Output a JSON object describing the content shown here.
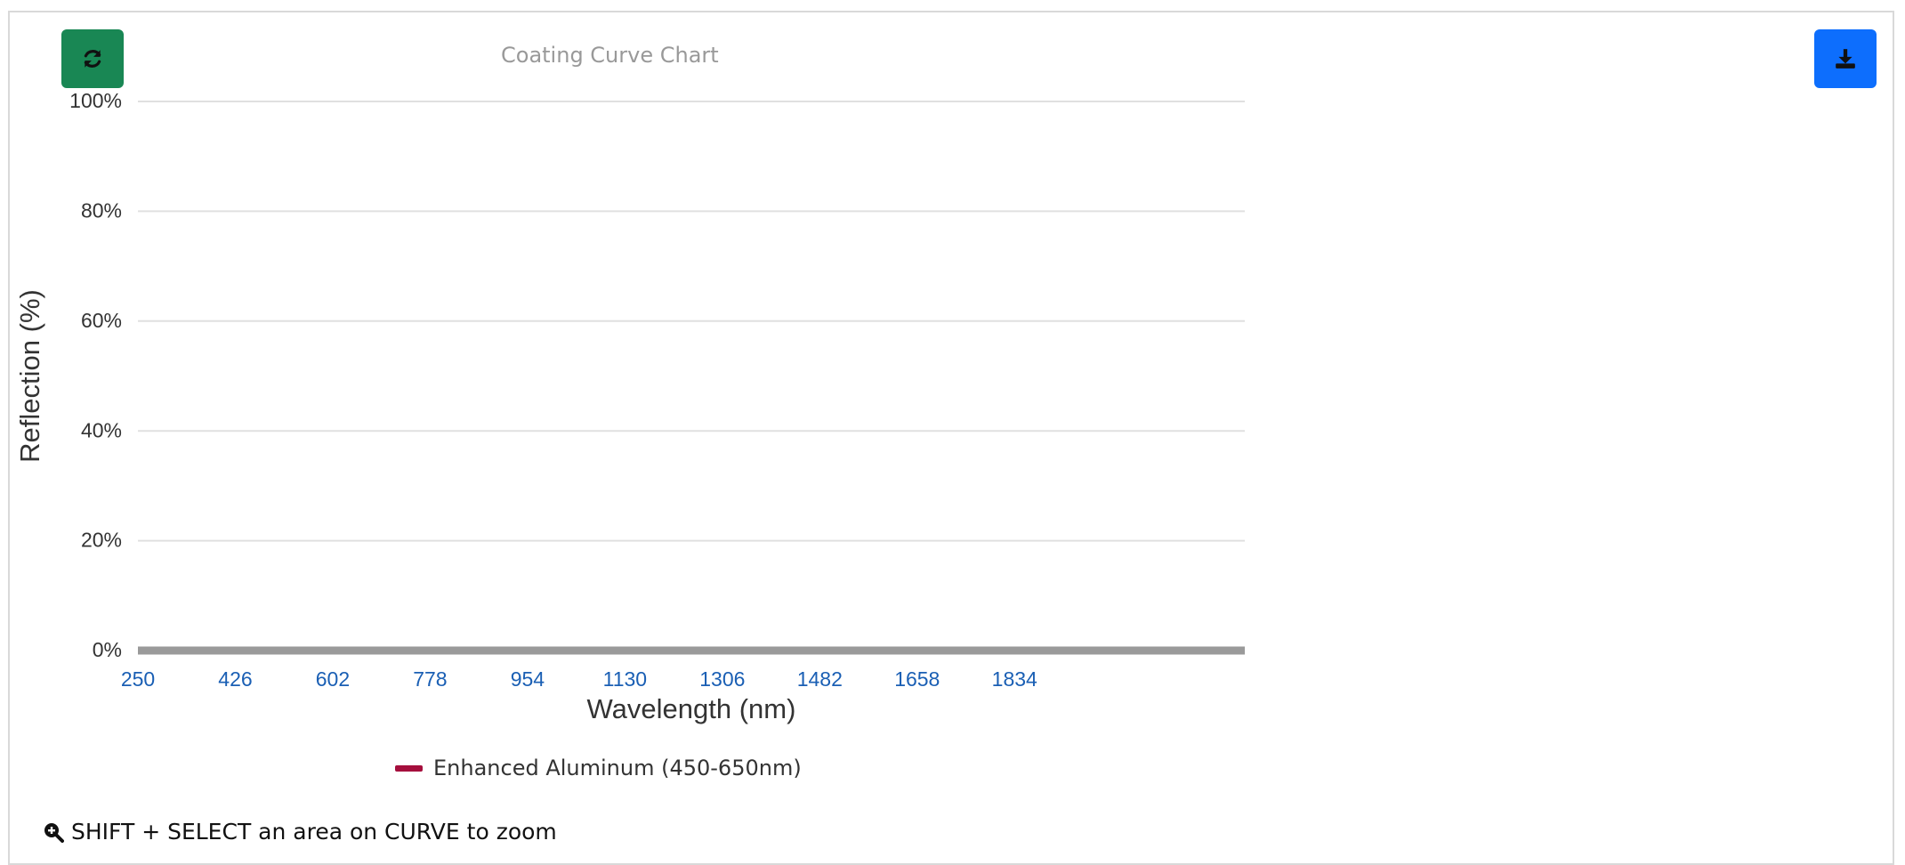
{
  "toolbar": {
    "refresh_icon": "refresh-icon",
    "download_icon": "download-icon",
    "refresh_color": "#198754",
    "download_color": "#0d6efd"
  },
  "chart_data": {
    "type": "line",
    "title": "Coating Curve Chart",
    "xlabel": "Wavelength (nm)",
    "ylabel": "Reflection (%)",
    "xlim": [
      250,
      2250
    ],
    "ylim": [
      0,
      100
    ],
    "x_ticks": [
      "250",
      "426",
      "602",
      "778",
      "954",
      "1130",
      "1306",
      "1482",
      "1658",
      "1834"
    ],
    "y_ticks": [
      "0%",
      "20%",
      "40%",
      "60%",
      "80%",
      "100%"
    ],
    "grid": true,
    "legend_position": "bottom-center",
    "series": [
      {
        "name": "Enhanced Aluminum (450-650nm)",
        "color": "#a50f3d",
        "x": [],
        "y": []
      }
    ]
  },
  "hint": {
    "text": "SHIFT + SELECT an area on CURVE to zoom",
    "icon": "zoom-in-icon"
  }
}
